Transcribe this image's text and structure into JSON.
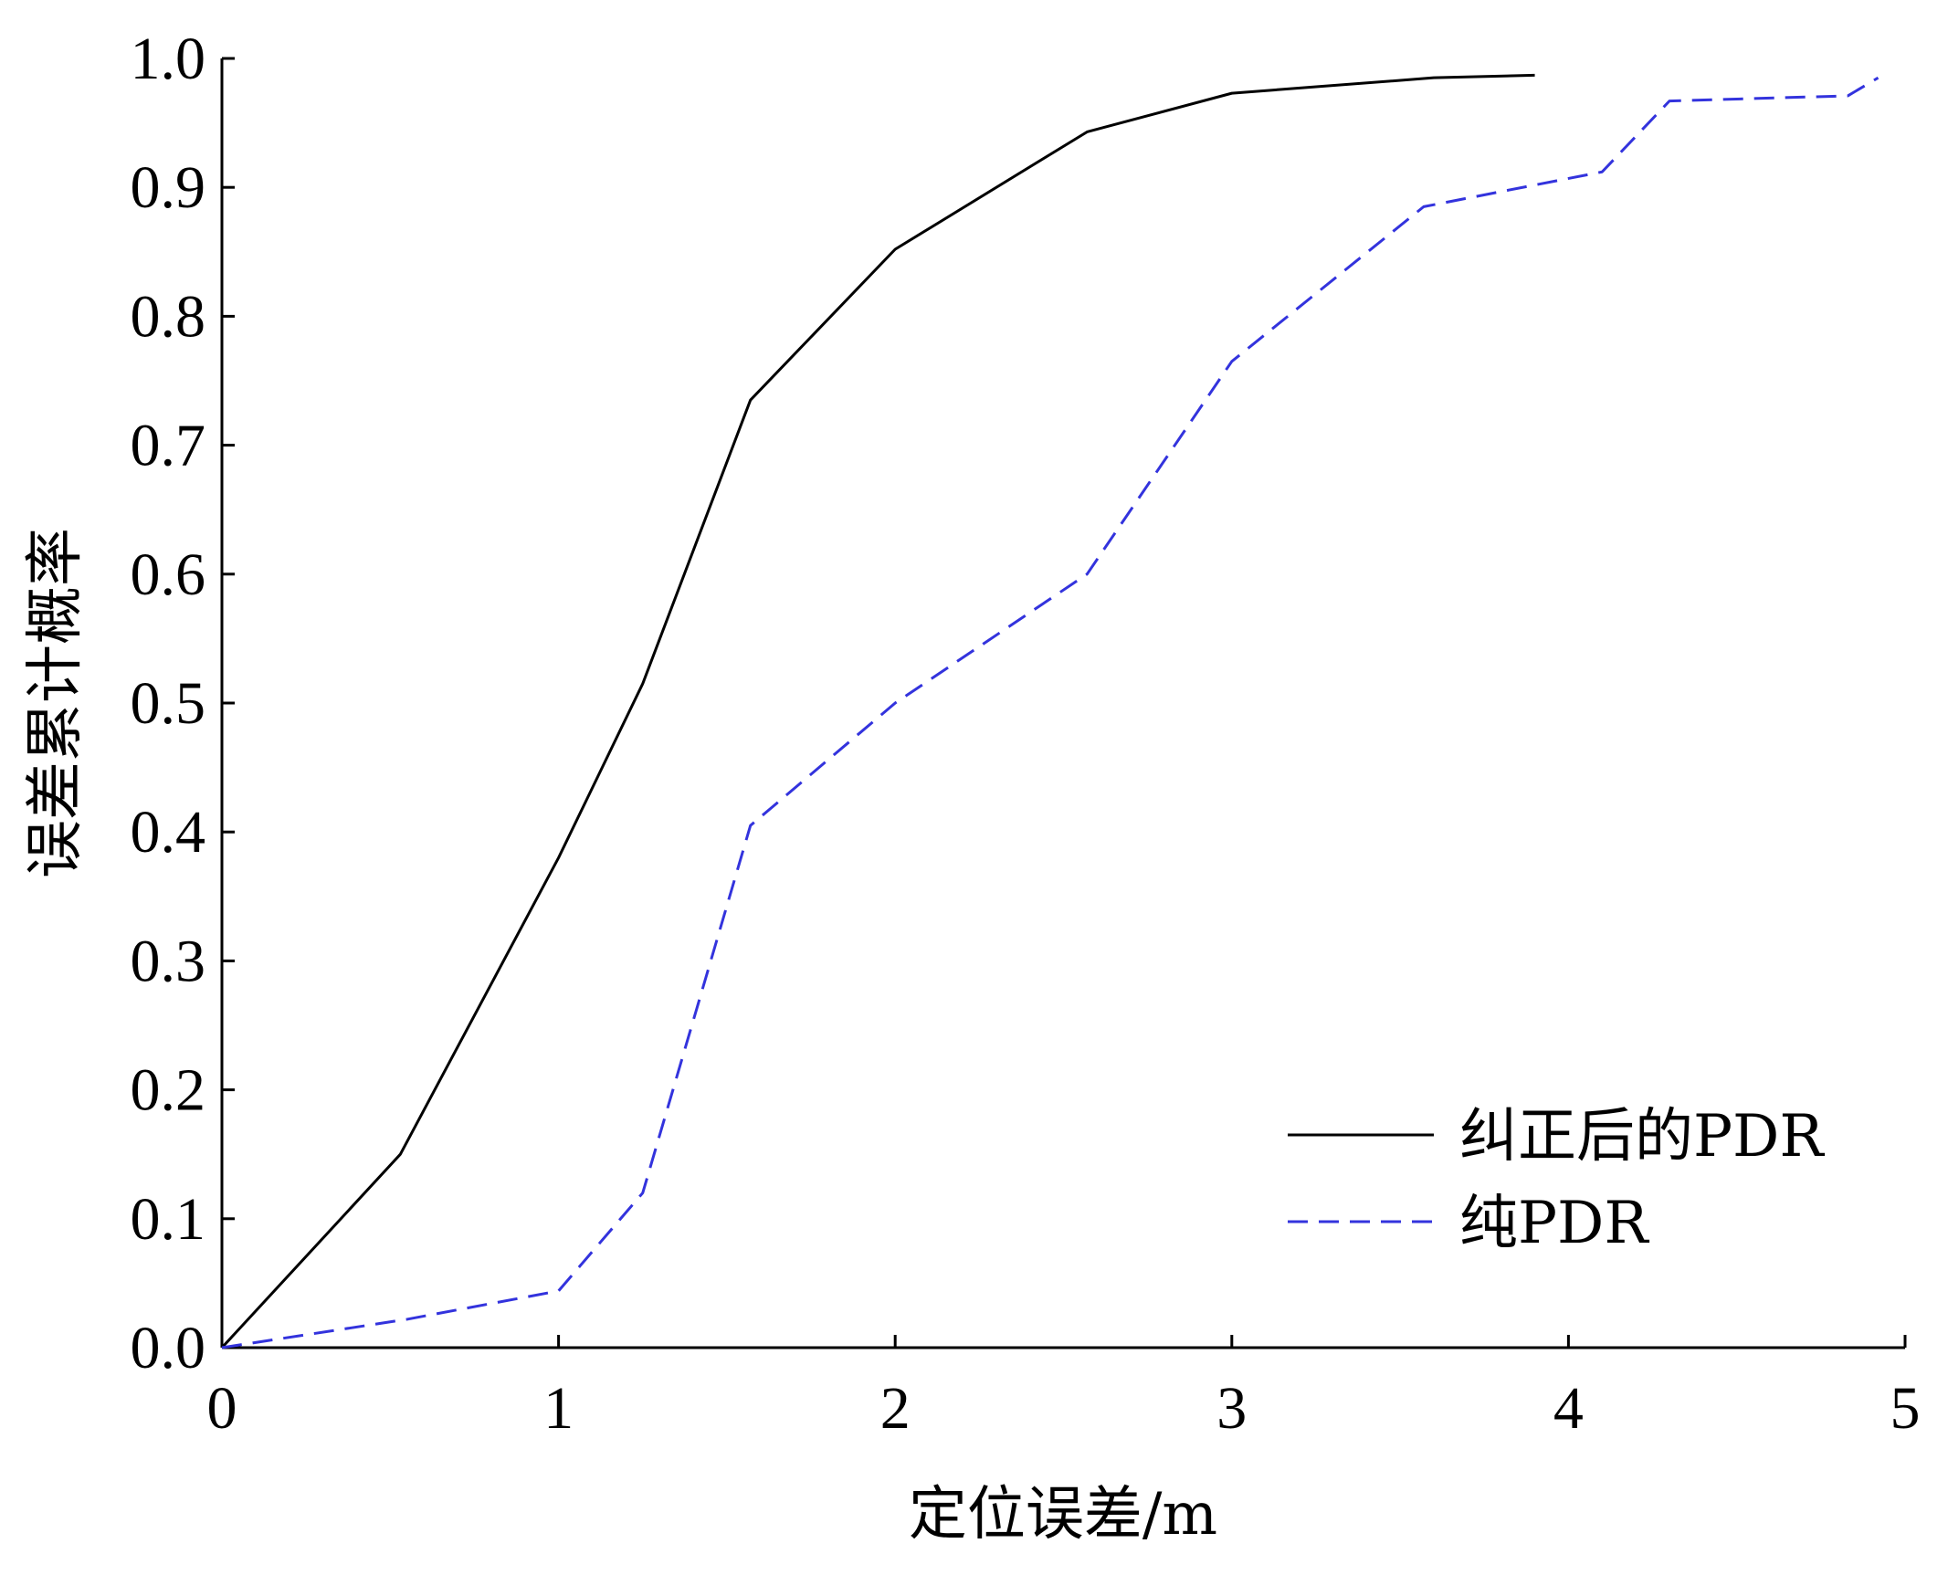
{
  "chart_data": {
    "type": "line",
    "title": "",
    "xlabel": "定位误差/m",
    "ylabel": "误差累计概率",
    "xlim": [
      0,
      5
    ],
    "ylim": [
      0,
      1.0
    ],
    "xticks": [
      0,
      1,
      2,
      3,
      4,
      5
    ],
    "xtick_labels": [
      "0",
      "1",
      "2",
      "3",
      "4",
      "5"
    ],
    "yticks": [
      0.0,
      0.1,
      0.2,
      0.3,
      0.4,
      0.5,
      0.6,
      0.7,
      0.8,
      0.9,
      1.0
    ],
    "ytick_labels": [
      "0.0",
      "0.1",
      "0.2",
      "0.3",
      "0.4",
      "0.5",
      "0.6",
      "0.7",
      "0.8",
      "0.9",
      "1.0"
    ],
    "grid": false,
    "legend_position": "bottom-right",
    "series": [
      {
        "name": "纠正后的PDR",
        "color": "#000000",
        "style": "solid",
        "x": [
          0,
          0.53,
          1.0,
          1.25,
          1.57,
          2.0,
          2.57,
          3.0,
          3.6,
          3.9
        ],
        "y": [
          0,
          0.15,
          0.38,
          0.515,
          0.735,
          0.852,
          0.943,
          0.973,
          0.985,
          0.987
        ]
      },
      {
        "name": "纯PDR",
        "color": "#3333dd",
        "style": "dashed",
        "x": [
          0,
          0.55,
          1.0,
          1.25,
          1.57,
          2.0,
          2.57,
          3.0,
          3.57,
          4.1,
          4.3,
          4.83,
          4.92
        ],
        "y": [
          0,
          0.022,
          0.044,
          0.12,
          0.405,
          0.5,
          0.6,
          0.765,
          0.885,
          0.912,
          0.967,
          0.971,
          0.985
        ]
      }
    ]
  }
}
